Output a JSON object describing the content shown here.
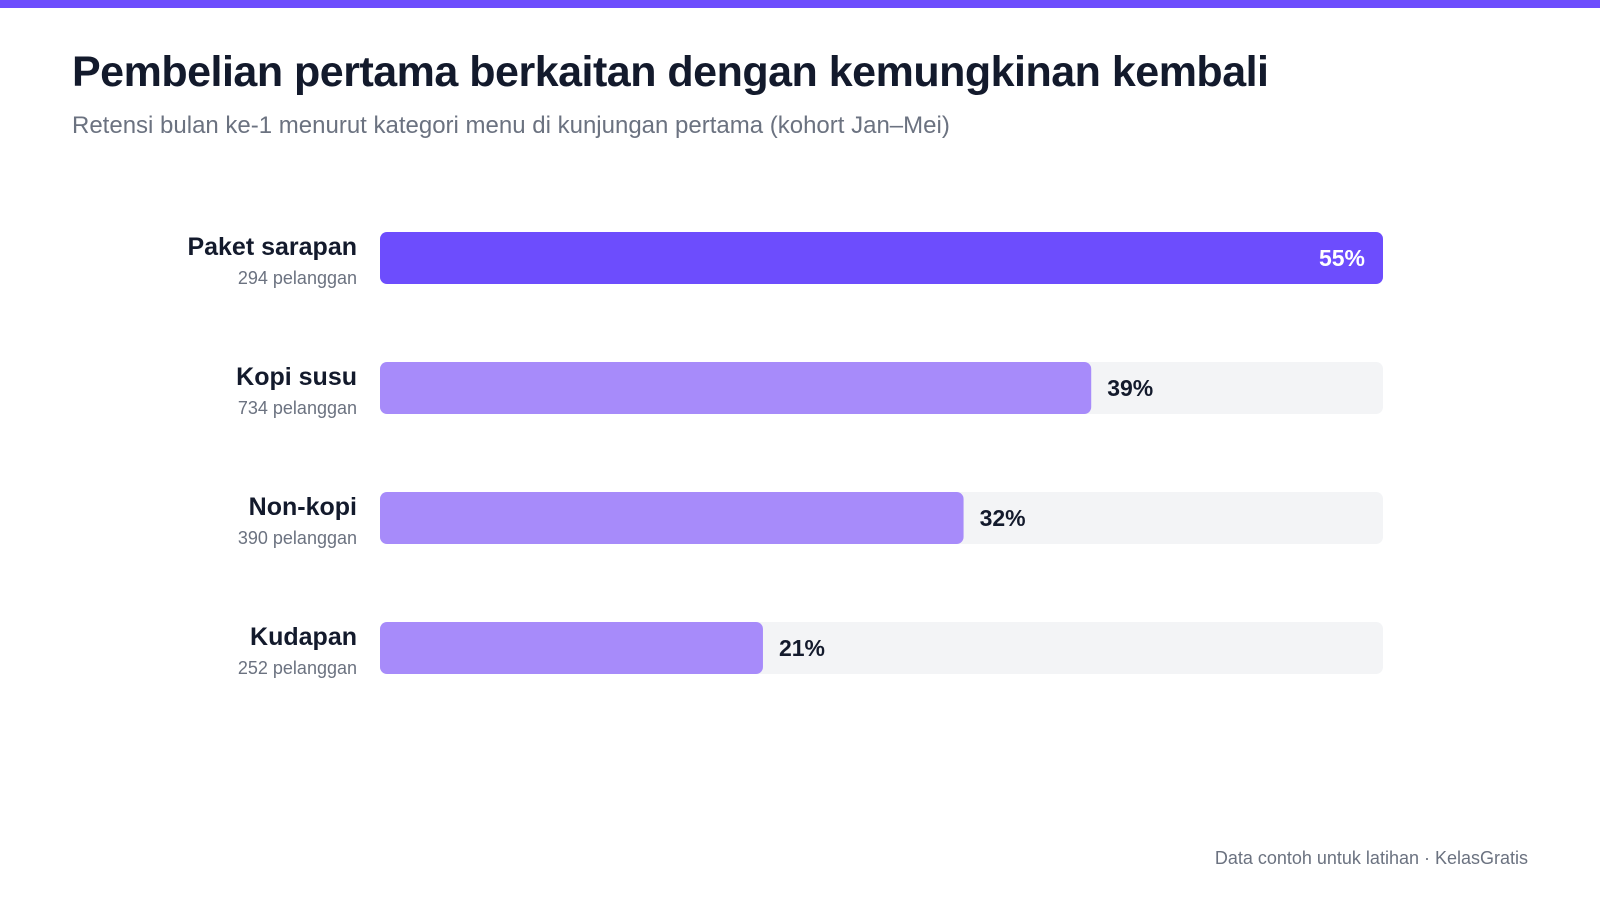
{
  "title": "Pembelian pertama berkaitan dengan kemungkinan kembali",
  "subtitle": "Retensi bulan ke-1 menurut kategori menu di kunjungan pertama (kohort Jan–Mei)",
  "footer": "Data contoh untuk latihan · KelasGratis",
  "colors": {
    "accent": "#6d4dfd",
    "bar_highlight": "#6d4dfd",
    "bar_default": "#a78bfa",
    "track": "#f3f4f6",
    "label_dark": "#131a2c",
    "label_muted": "#6b7280",
    "value_on_bar": "#ffffff"
  },
  "chart_data": {
    "type": "bar",
    "orientation": "horizontal",
    "categories": [
      "Paket sarapan",
      "Kopi susu",
      "Non-kopi",
      "Kudapan"
    ],
    "sublabels": [
      "294 pelanggan",
      "734 pelanggan",
      "390 pelanggan",
      "252 pelanggan"
    ],
    "values": [
      55,
      39,
      32,
      21
    ],
    "value_labels": [
      "55%",
      "39%",
      "32%",
      "21%"
    ],
    "unit": "%",
    "xlim": [
      0,
      55
    ],
    "highlight_index": 0,
    "grid": false,
    "legend": "none"
  }
}
